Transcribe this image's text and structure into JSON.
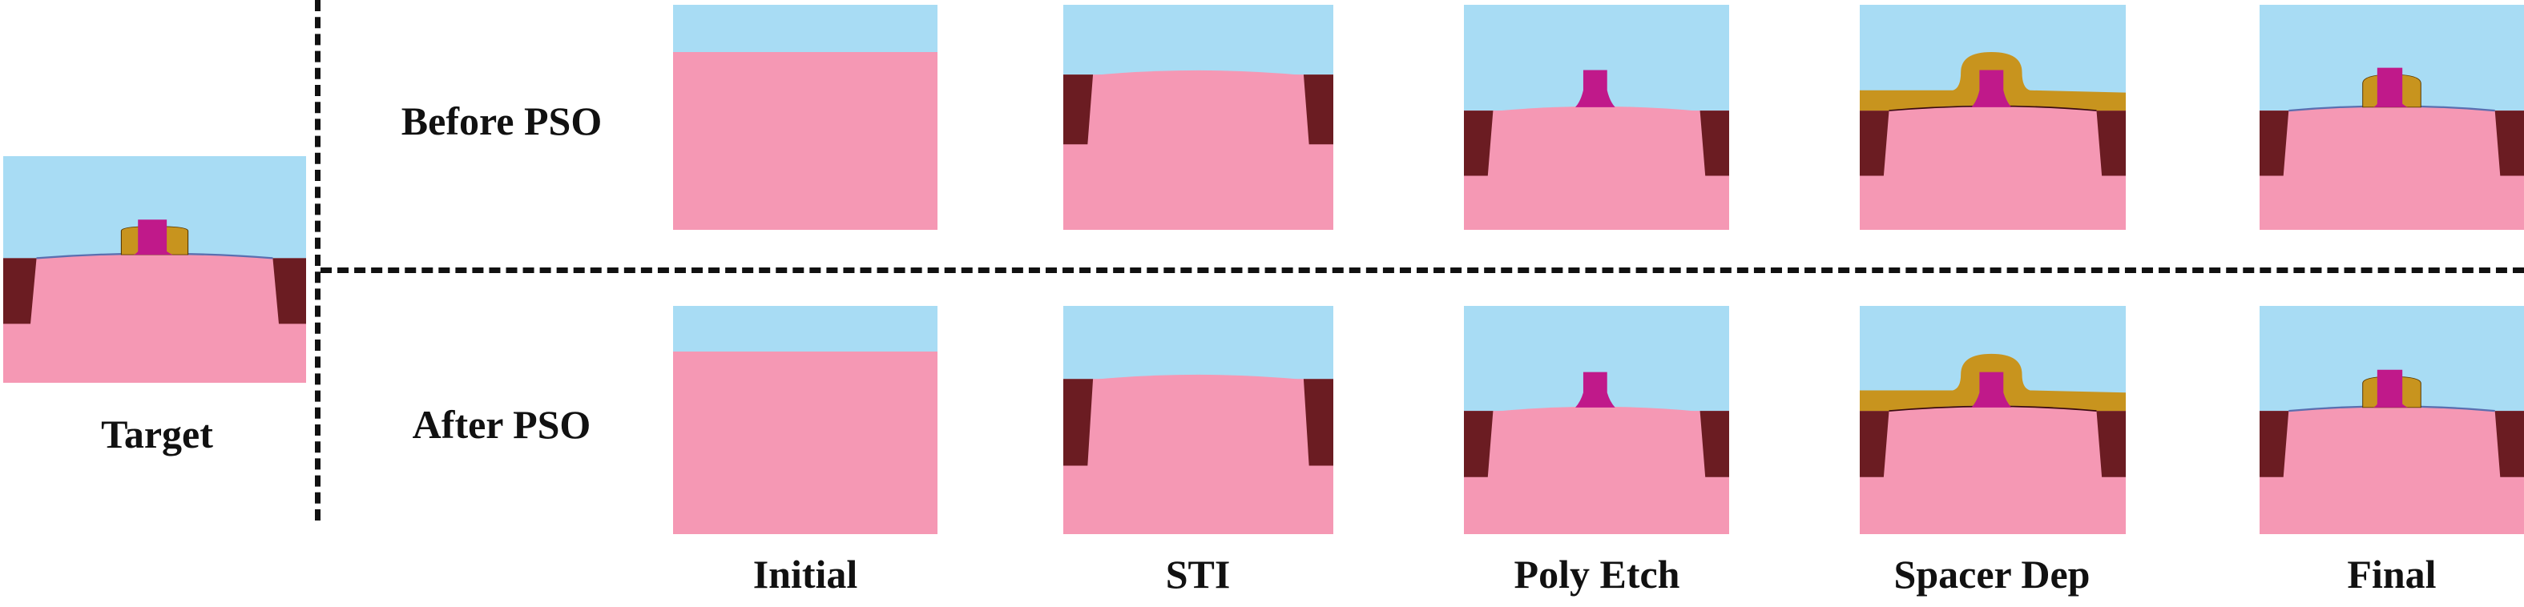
{
  "target": {
    "label": "Target"
  },
  "rows": [
    {
      "label": "Before PSO"
    },
    {
      "label": "After PSO"
    }
  ],
  "stages": [
    {
      "label": "Initial"
    },
    {
      "label": "STI"
    },
    {
      "label": "Poly Etch"
    },
    {
      "label": "Spacer Dep"
    },
    {
      "label": "Final"
    }
  ],
  "colors": {
    "ambient": "#a8dcf4",
    "silicon": "#f598b4",
    "oxide": "#6b1c22",
    "poly": "#c0198a",
    "spacer": "#c8941e",
    "liner": "#5a6fb0"
  }
}
